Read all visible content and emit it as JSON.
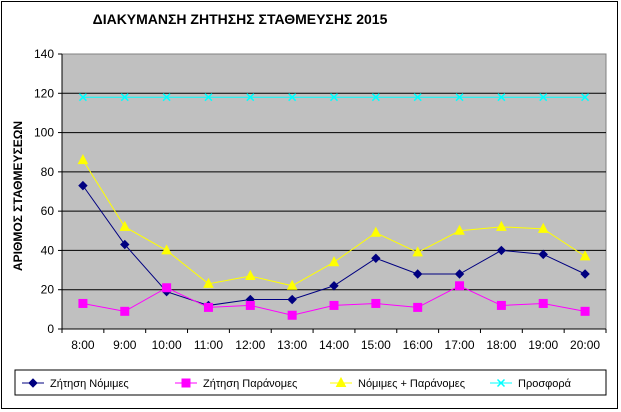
{
  "chart_data": {
    "type": "line",
    "title": "ΔΙΑΚΥΜΑΝΣΗ ΖΗΤΗΣΗΣ ΣΤΑΘΜΕΥΣΗΣ 2015",
    "ylabel": "ΑΡΙΘΜΟΣ ΣΤΑΘΜΕΥΣΕΩΝ",
    "xlabel": "",
    "ylim": [
      0,
      140
    ],
    "yticks": [
      0,
      20,
      40,
      60,
      80,
      100,
      120,
      140
    ],
    "grid": true,
    "legend_position": "bottom",
    "categories": [
      "8:00",
      "9:00",
      "10:00",
      "11:00",
      "12:00",
      "13:00",
      "14:00",
      "15:00",
      "16:00",
      "17:00",
      "18:00",
      "19:00",
      "20:00"
    ],
    "series": [
      {
        "name": "Ζήτηση Νόμιμες",
        "color": "#000080",
        "marker": "diamond",
        "values": [
          73,
          43,
          19,
          12,
          15,
          15,
          22,
          36,
          28,
          28,
          40,
          38,
          28
        ]
      },
      {
        "name": "Ζήτηση Παράνομες",
        "color": "#FF00FF",
        "marker": "square",
        "values": [
          13,
          9,
          21,
          11,
          12,
          7,
          12,
          13,
          11,
          22,
          12,
          13,
          9
        ]
      },
      {
        "name": "Νόμιμες + Παράνομες",
        "color": "#FFFF00",
        "marker": "triangle",
        "values": [
          86,
          52,
          40,
          23,
          27,
          22,
          34,
          49,
          39,
          50,
          52,
          51,
          37
        ]
      },
      {
        "name": "Προσφορά",
        "color": "#00FFFF",
        "marker": "x",
        "values": [
          118,
          118,
          118,
          118,
          118,
          118,
          118,
          118,
          118,
          118,
          118,
          118,
          118
        ]
      }
    ],
    "plot_background": "#C0C0C0"
  }
}
